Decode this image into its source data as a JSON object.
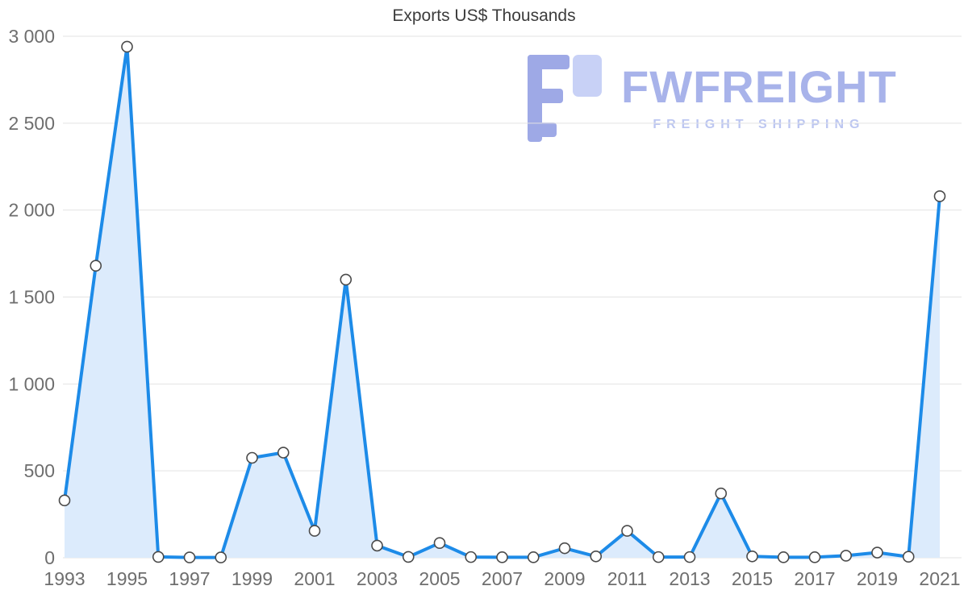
{
  "page": {
    "background": "#ffffff"
  },
  "watermark": {
    "brand": "FWFREIGHT",
    "tagline": "FREIGHT SHIPPING",
    "brand_color": "#a8b3ea",
    "tagline_color": "#bcc6f1",
    "logo_dark_color": "#9ea9e6",
    "logo_light_color": "#c8d1f6"
  },
  "chart_data": {
    "type": "area",
    "title": "Exports US$ Thousands",
    "xlabel": "",
    "ylabel": "",
    "x": [
      1993,
      1994,
      1995,
      1996,
      1997,
      1998,
      1999,
      2000,
      2001,
      2002,
      2003,
      2004,
      2005,
      2006,
      2007,
      2008,
      2009,
      2010,
      2011,
      2012,
      2013,
      2014,
      2015,
      2016,
      2017,
      2018,
      2019,
      2020,
      2021
    ],
    "values": [
      330,
      1680,
      2940,
      5,
      2,
      2,
      575,
      605,
      155,
      1600,
      70,
      5,
      85,
      4,
      3,
      3,
      55,
      8,
      155,
      4,
      4,
      370,
      8,
      3,
      3,
      12,
      30,
      6,
      2080
    ],
    "x_tick_labels": [
      "1993",
      "1995",
      "1997",
      "1999",
      "2001",
      "2003",
      "2005",
      "2007",
      "2009",
      "2011",
      "2013",
      "2015",
      "2017",
      "2019",
      "2021"
    ],
    "y_tick_values": [
      0,
      500,
      1000,
      1500,
      2000,
      2500,
      3000
    ],
    "y_tick_labels": [
      "0",
      "500",
      "1 000",
      "1 500",
      "2 000",
      "2 500",
      "3 000"
    ],
    "ylim": [
      0,
      3000
    ],
    "grid": "horizontal",
    "legend": "none",
    "line_color": "#1d8be8",
    "area_color": "#dcebfc",
    "marker_fill": "#ffffff",
    "marker_stroke": "#4a4a4a",
    "axis_label_color": "#6e6e6e",
    "grid_color": "#e3e3e3"
  }
}
